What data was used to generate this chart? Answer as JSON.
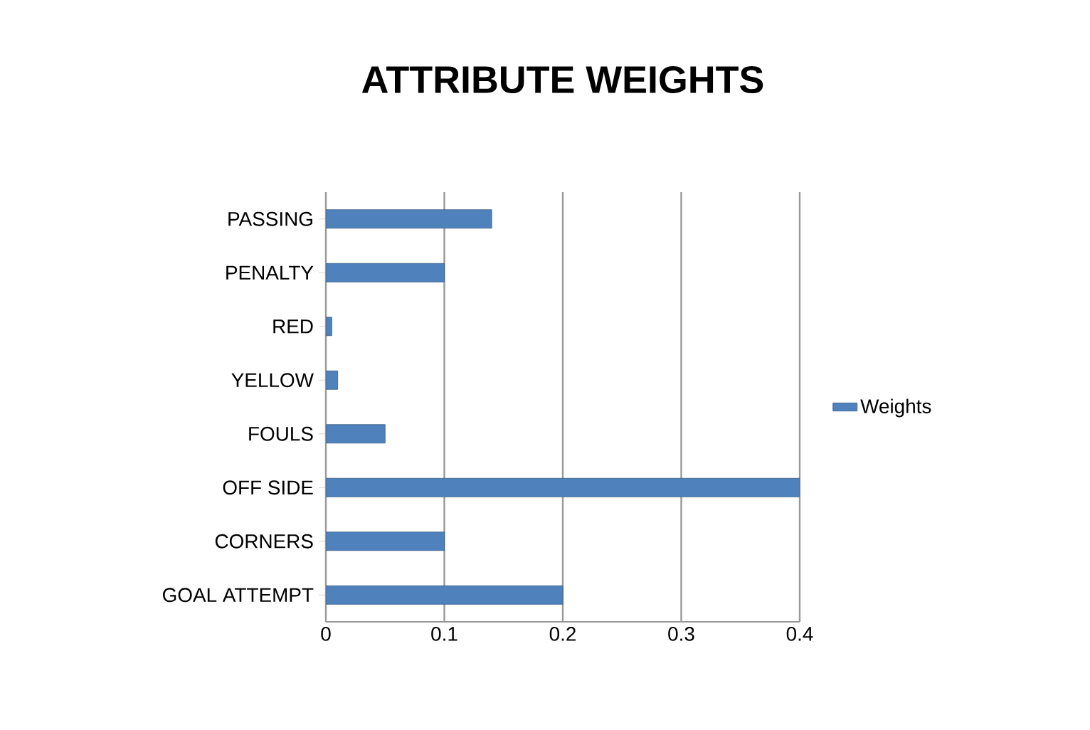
{
  "chart_data": {
    "type": "bar",
    "orientation": "horizontal",
    "title": "ATTRIBUTE WEIGHTS",
    "categories": [
      "PASSING",
      "PENALTY",
      "RED",
      "YELLOW",
      "FOULS",
      "OFF SIDE",
      "CORNERS",
      "GOAL ATTEMPT"
    ],
    "series": [
      {
        "name": "Weights",
        "color": "#4f81bd",
        "values": [
          0.14,
          0.1,
          0.005,
          0.01,
          0.05,
          0.4,
          0.1,
          0.2
        ]
      }
    ],
    "xlim": [
      0,
      0.4
    ],
    "xticks": [
      0,
      0.1,
      0.2,
      0.3,
      0.4
    ],
    "grid": "x",
    "legend": "right"
  }
}
